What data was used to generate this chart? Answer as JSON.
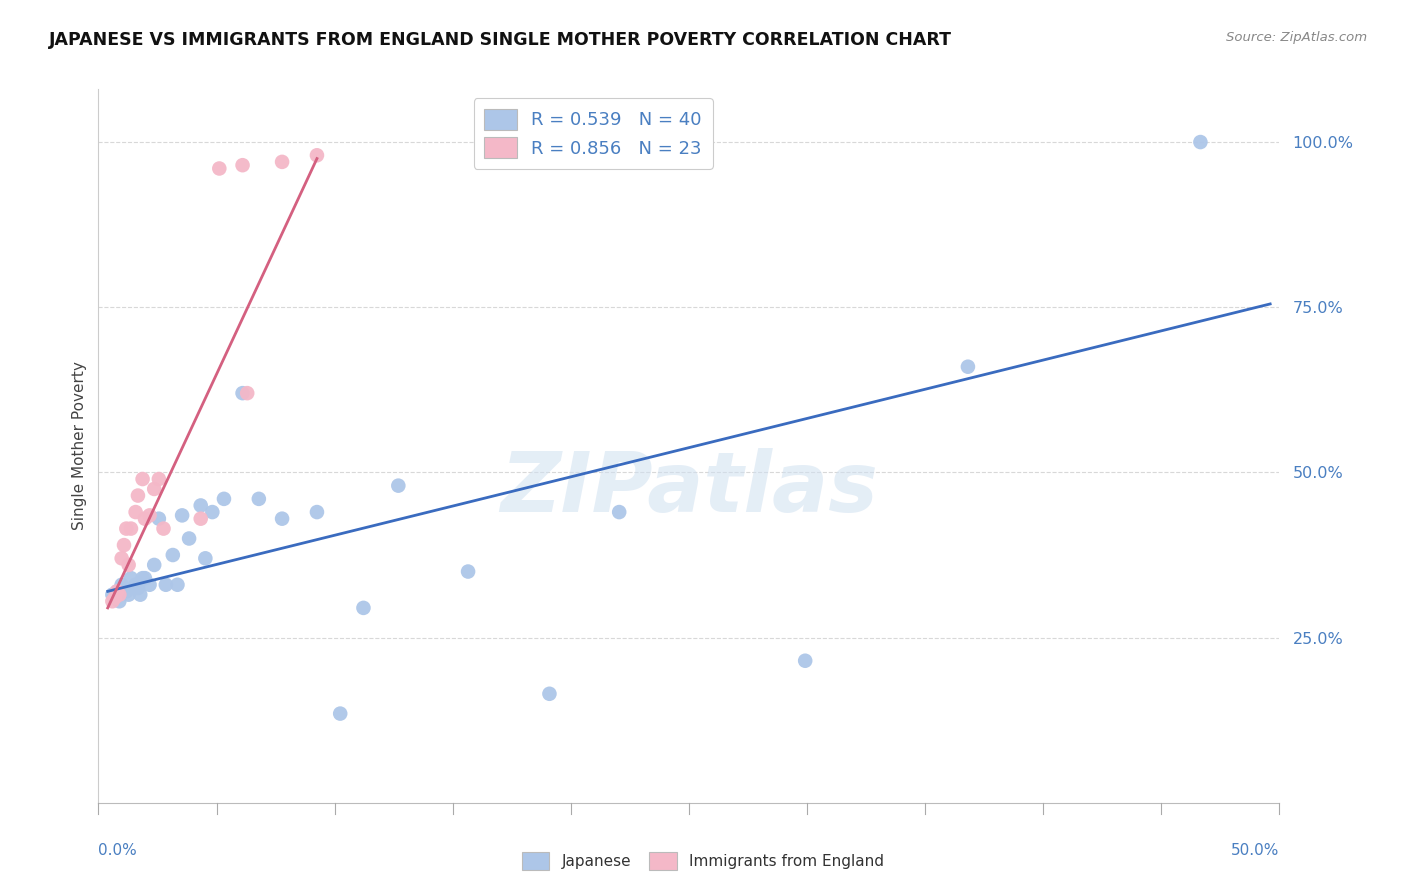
{
  "title": "JAPANESE VS IMMIGRANTS FROM ENGLAND SINGLE MOTHER POVERTY CORRELATION CHART",
  "source": "Source: ZipAtlas.com",
  "ylabel": "Single Mother Poverty",
  "ytick_labels": [
    "25.0%",
    "50.0%",
    "75.0%",
    "100.0%"
  ],
  "ytick_values": [
    0.25,
    0.5,
    0.75,
    1.0
  ],
  "xlim": [
    0.0,
    0.5
  ],
  "ylim": [
    0.0,
    1.08
  ],
  "watermark": "ZIPatlas",
  "blue_color": "#adc6e8",
  "pink_color": "#f4b8c8",
  "line_blue": "#3a6bbf",
  "line_pink": "#d46080",
  "label_color": "#4a7fc1",
  "grid_color": "#d8d8d8",
  "jp_x": [
    0.002,
    0.003,
    0.004,
    0.005,
    0.006,
    0.007,
    0.008,
    0.009,
    0.01,
    0.011,
    0.012,
    0.013,
    0.014,
    0.015,
    0.016,
    0.018,
    0.02,
    0.022,
    0.025,
    0.028,
    0.03,
    0.032,
    0.035,
    0.04,
    0.042,
    0.045,
    0.05,
    0.058,
    0.065,
    0.075,
    0.09,
    0.1,
    0.11,
    0.125,
    0.155,
    0.19,
    0.22,
    0.3,
    0.37,
    0.47
  ],
  "jp_y": [
    0.315,
    0.31,
    0.32,
    0.305,
    0.33,
    0.325,
    0.32,
    0.315,
    0.34,
    0.325,
    0.33,
    0.325,
    0.315,
    0.34,
    0.34,
    0.33,
    0.36,
    0.43,
    0.33,
    0.375,
    0.33,
    0.435,
    0.4,
    0.45,
    0.37,
    0.44,
    0.46,
    0.62,
    0.46,
    0.43,
    0.44,
    0.135,
    0.295,
    0.48,
    0.35,
    0.165,
    0.44,
    0.215,
    0.66,
    1.0
  ],
  "en_x": [
    0.002,
    0.003,
    0.004,
    0.005,
    0.006,
    0.007,
    0.008,
    0.009,
    0.01,
    0.012,
    0.013,
    0.015,
    0.016,
    0.018,
    0.02,
    0.022,
    0.024,
    0.04,
    0.048,
    0.058,
    0.06,
    0.075,
    0.09
  ],
  "en_y": [
    0.305,
    0.31,
    0.32,
    0.315,
    0.37,
    0.39,
    0.415,
    0.36,
    0.415,
    0.44,
    0.465,
    0.49,
    0.43,
    0.435,
    0.475,
    0.49,
    0.415,
    0.43,
    0.96,
    0.965,
    0.62,
    0.97,
    0.98
  ],
  "jp_line_x": [
    0.0,
    0.5
  ],
  "jp_line_y": [
    0.32,
    0.755
  ],
  "en_line_x": [
    0.0,
    0.09
  ],
  "en_line_y": [
    0.295,
    0.975
  ]
}
